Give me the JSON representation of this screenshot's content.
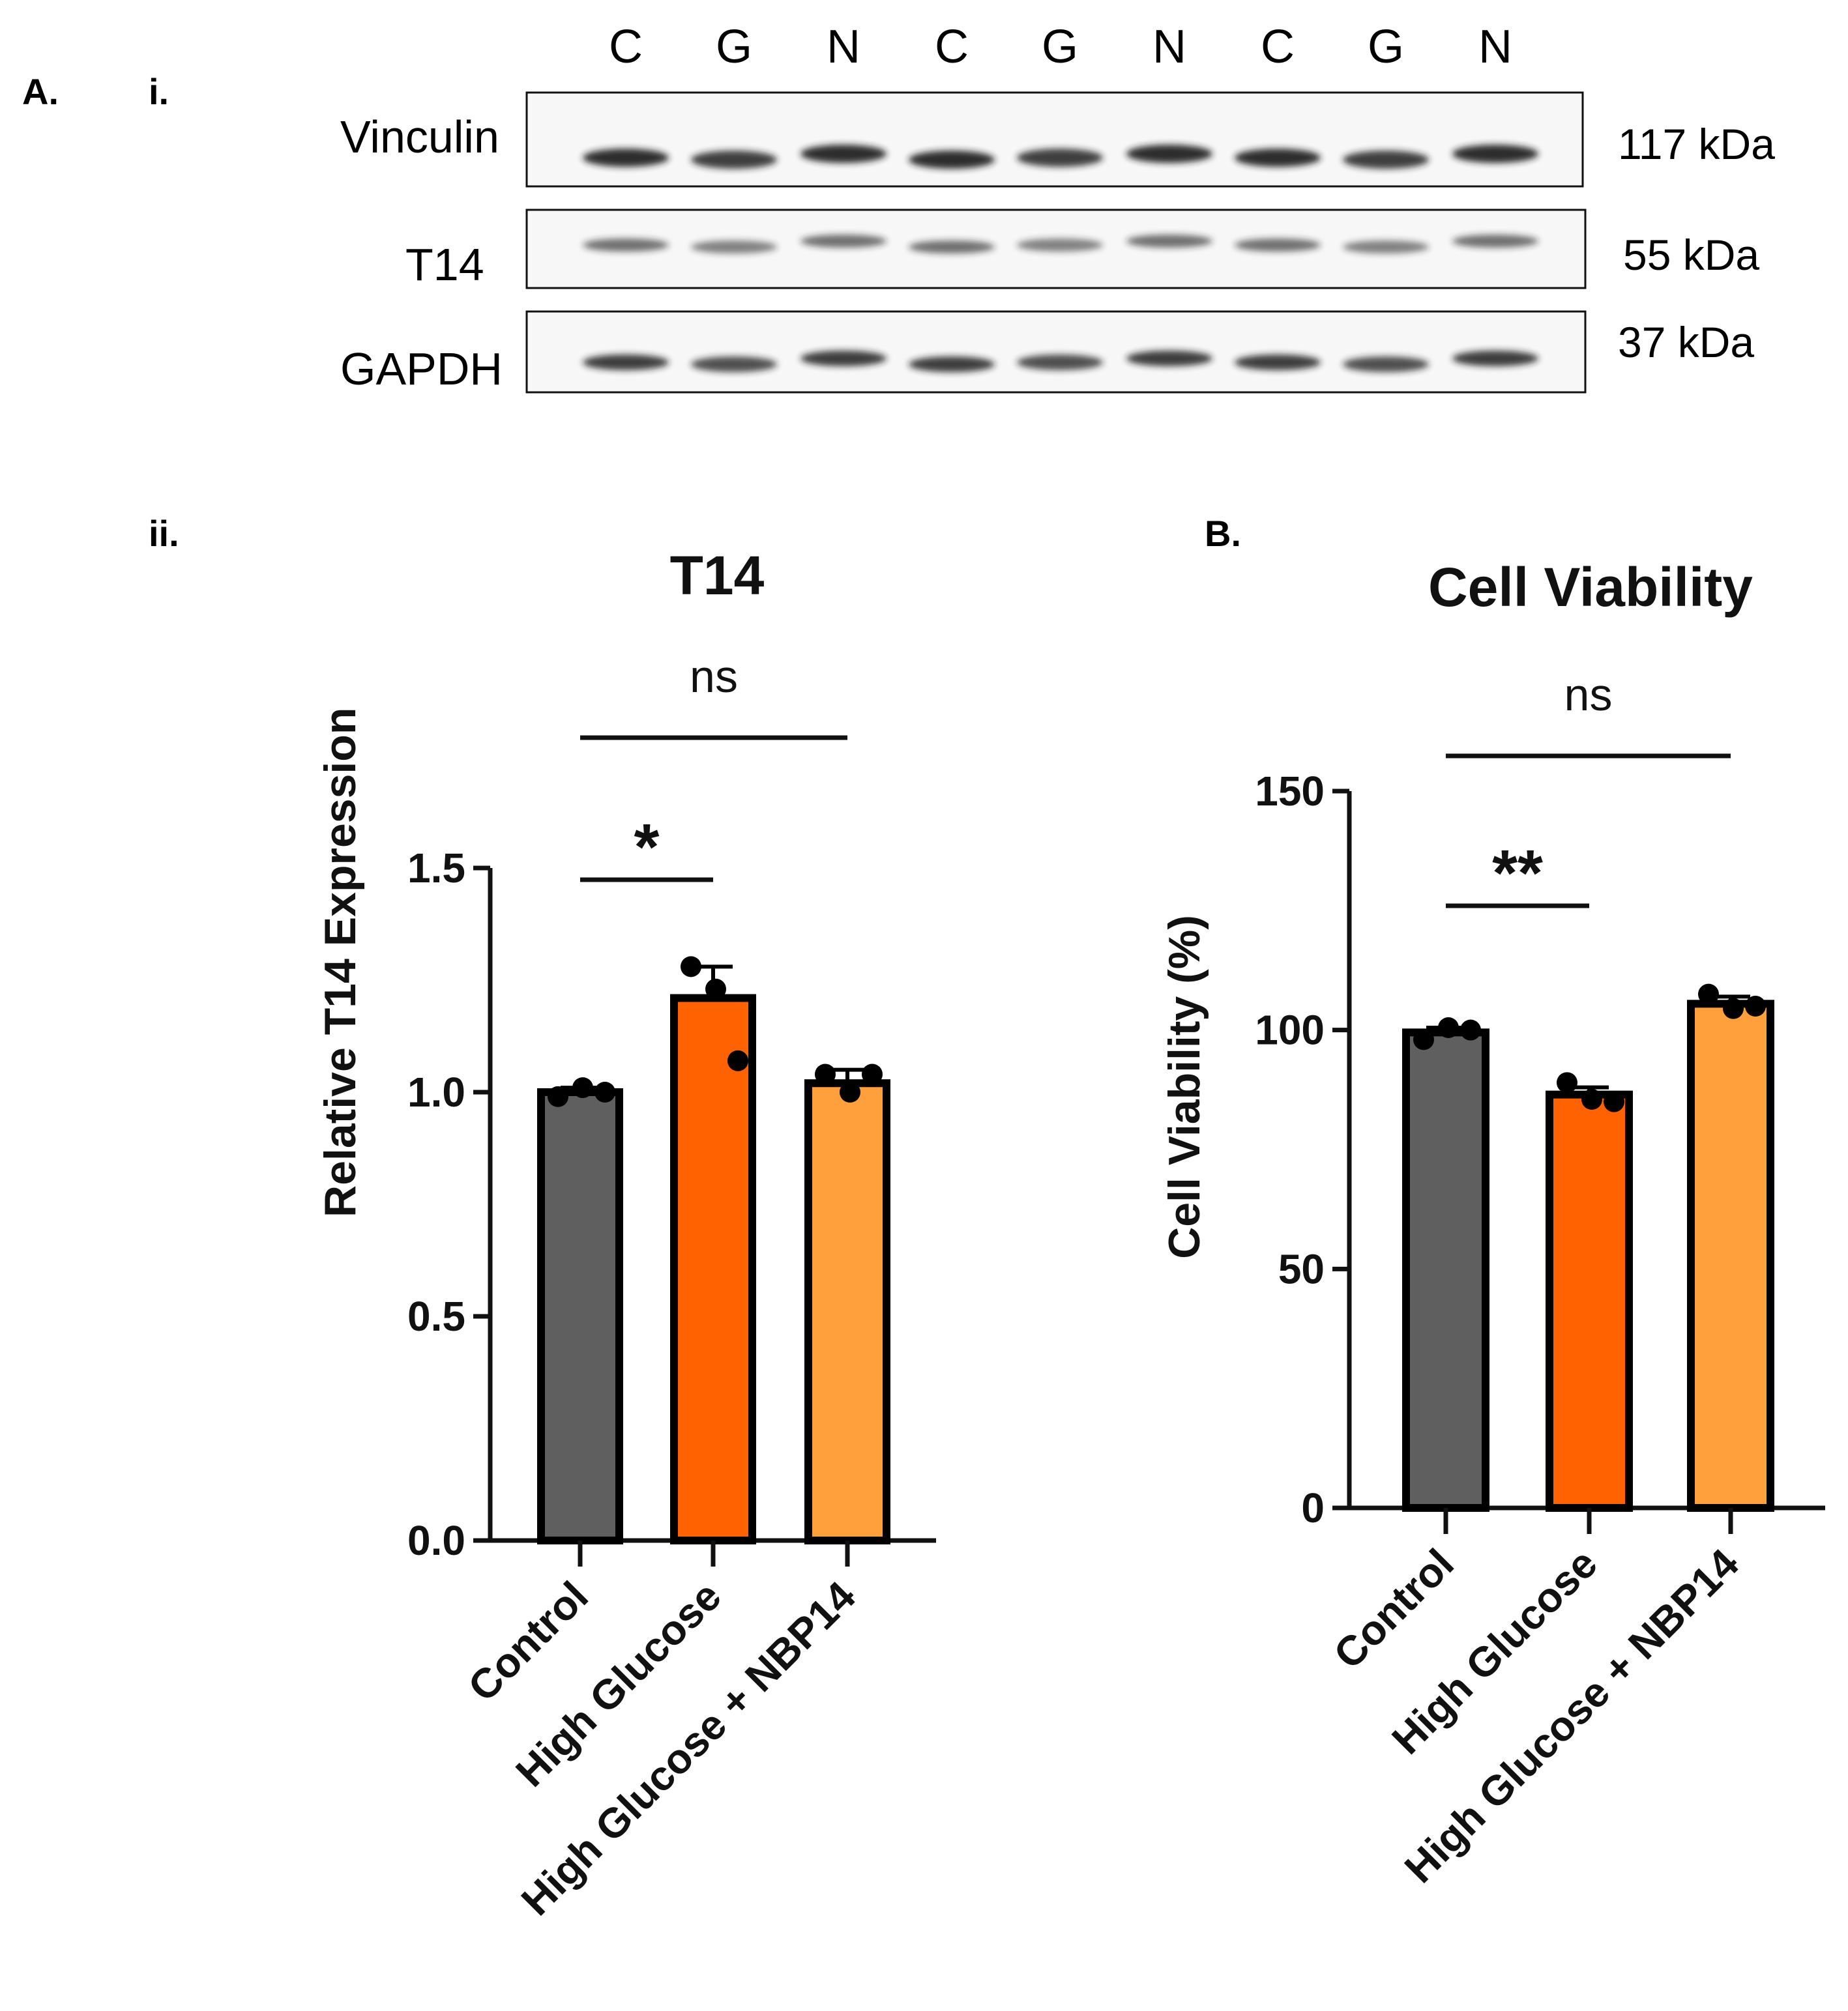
{
  "panel_labels": {
    "a": "A.",
    "a_i": "i.",
    "a_ii": "ii.",
    "b": "B."
  },
  "blot": {
    "lanes": [
      "C",
      "G",
      "N",
      "C",
      "G",
      "N",
      "C",
      "G",
      "N"
    ],
    "rows": [
      {
        "protein": "Vinculin",
        "size": "117 kDa"
      },
      {
        "protein": "T14",
        "size": "55 kDa"
      },
      {
        "protein": "GAPDH",
        "size": "37 kDa"
      }
    ]
  },
  "colors": {
    "control": "#5f5f5f",
    "high_glucose": "#ff6200",
    "high_glucose_nbp14": "#ffa03c"
  },
  "chart_data": [
    {
      "type": "bar",
      "title": "T14",
      "xlabel": "",
      "ylabel": "Relative T14 Expression",
      "categories": [
        "Control",
        "High Glucose",
        "High Glucose + NBP14"
      ],
      "values": [
        1.0,
        1.21,
        1.02
      ],
      "errors": [
        0.01,
        0.07,
        0.03
      ],
      "points": [
        [
          0.99,
          1.01,
          1.0
        ],
        [
          1.28,
          1.23,
          1.07
        ],
        [
          1.04,
          1.0,
          1.04
        ]
      ],
      "ylim": [
        0.0,
        1.5
      ],
      "yticks": [
        "0.0",
        "0.5",
        "1.0",
        "1.5"
      ],
      "significance": [
        {
          "from": 0,
          "to": 1,
          "label": "*"
        },
        {
          "from": 0,
          "to": 2,
          "label": "ns"
        }
      ]
    },
    {
      "type": "bar",
      "title": "Cell Viability",
      "xlabel": "",
      "ylabel": "Cell Viability (%)",
      "categories": [
        "Control",
        "High Glucose",
        "High Glucose + NBP14"
      ],
      "values": [
        99.5,
        86.5,
        105.5
      ],
      "errors": [
        1.0,
        1.5,
        1.5
      ],
      "points": [
        [
          98.0,
          100.5,
          100.0
        ],
        [
          89.0,
          85.5,
          85.0
        ],
        [
          107.5,
          104.5,
          105.0
        ]
      ],
      "ylim": [
        0,
        150
      ],
      "yticks": [
        "0",
        "50",
        "100",
        "150"
      ],
      "significance": [
        {
          "from": 0,
          "to": 1,
          "label": "**"
        },
        {
          "from": 0,
          "to": 2,
          "label": "ns"
        }
      ]
    }
  ]
}
